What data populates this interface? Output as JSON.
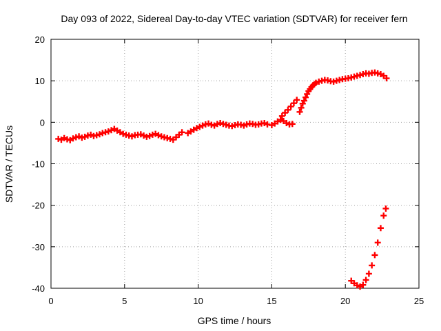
{
  "chart_data": {
    "type": "scatter",
    "title": "Day 093 of 2022, Sidereal Day-to-day VTEC variation (SDTVAR) for receiver fern",
    "xlabel": "GPS time / hours",
    "ylabel": "SDTVAR / TECUs",
    "xlim": [
      0,
      25
    ],
    "ylim": [
      -40,
      20
    ],
    "x_ticks": [
      0,
      5,
      10,
      15,
      20,
      25
    ],
    "y_ticks": [
      -40,
      -30,
      -20,
      -10,
      0,
      10,
      20
    ],
    "x_tick_labels": [
      "0",
      "5",
      "10",
      "15",
      "20",
      "25"
    ],
    "y_tick_labels": [
      "-40",
      "-30",
      "-20",
      "-10",
      "0",
      "10",
      "20"
    ],
    "grid": true,
    "marker": "plus",
    "marker_color": "#ff0000",
    "series": [
      {
        "name": "main-track",
        "points": [
          [
            0.5,
            -4.0
          ],
          [
            0.7,
            -4.2
          ],
          [
            0.9,
            -3.8
          ],
          [
            1.1,
            -4.1
          ],
          [
            1.3,
            -4.3
          ],
          [
            1.5,
            -3.9
          ],
          [
            1.7,
            -3.6
          ],
          [
            1.9,
            -3.4
          ],
          [
            2.1,
            -3.7
          ],
          [
            2.3,
            -3.5
          ],
          [
            2.5,
            -3.2
          ],
          [
            2.7,
            -3.0
          ],
          [
            2.9,
            -3.3
          ],
          [
            3.1,
            -3.1
          ],
          [
            3.3,
            -2.9
          ],
          [
            3.5,
            -2.6
          ],
          [
            3.7,
            -2.4
          ],
          [
            3.9,
            -2.2
          ],
          [
            4.1,
            -1.9
          ],
          [
            4.3,
            -1.6
          ],
          [
            4.5,
            -2.0
          ],
          [
            4.7,
            -2.4
          ],
          [
            4.9,
            -2.8
          ],
          [
            5.1,
            -3.0
          ],
          [
            5.3,
            -3.2
          ],
          [
            5.5,
            -3.4
          ],
          [
            5.7,
            -3.1
          ],
          [
            5.9,
            -3.0
          ],
          [
            6.1,
            -2.9
          ],
          [
            6.3,
            -3.2
          ],
          [
            6.5,
            -3.5
          ],
          [
            6.7,
            -3.3
          ],
          [
            6.9,
            -3.0
          ],
          [
            7.1,
            -2.8
          ],
          [
            7.3,
            -3.1
          ],
          [
            7.5,
            -3.4
          ],
          [
            7.7,
            -3.6
          ],
          [
            7.9,
            -3.8
          ],
          [
            8.1,
            -4.0
          ],
          [
            8.3,
            -4.2
          ],
          [
            8.5,
            -3.6
          ],
          [
            8.7,
            -3.0
          ],
          [
            8.9,
            -2.4
          ],
          [
            9.3,
            -2.6
          ],
          [
            9.5,
            -2.2
          ],
          [
            9.7,
            -1.8
          ],
          [
            9.9,
            -1.4
          ],
          [
            10.1,
            -1.1
          ],
          [
            10.3,
            -0.8
          ],
          [
            10.5,
            -0.5
          ],
          [
            10.7,
            -0.3
          ],
          [
            10.9,
            -0.6
          ],
          [
            11.1,
            -0.8
          ],
          [
            11.3,
            -0.4
          ],
          [
            11.5,
            -0.2
          ],
          [
            11.7,
            -0.4
          ],
          [
            11.9,
            -0.6
          ],
          [
            12.1,
            -0.8
          ],
          [
            12.3,
            -0.9
          ],
          [
            12.5,
            -0.7
          ],
          [
            12.7,
            -0.5
          ],
          [
            12.9,
            -0.6
          ],
          [
            13.1,
            -0.8
          ],
          [
            13.3,
            -0.5
          ],
          [
            13.5,
            -0.3
          ],
          [
            13.7,
            -0.4
          ],
          [
            13.9,
            -0.6
          ],
          [
            14.1,
            -0.5
          ],
          [
            14.3,
            -0.3
          ],
          [
            14.5,
            -0.2
          ],
          [
            14.7,
            -0.5
          ],
          [
            15.0,
            -0.7
          ],
          [
            15.2,
            -0.3
          ],
          [
            15.4,
            0.2
          ],
          [
            15.6,
            0.6
          ],
          [
            15.8,
            0.3
          ],
          [
            16.0,
            -0.2
          ],
          [
            16.2,
            -0.5
          ],
          [
            16.4,
            -0.4
          ],
          [
            15.7,
            1.5
          ],
          [
            15.9,
            2.3
          ],
          [
            16.1,
            3.0
          ],
          [
            16.3,
            3.8
          ],
          [
            16.5,
            4.6
          ],
          [
            16.7,
            5.4
          ],
          [
            16.9,
            2.5
          ],
          [
            17.0,
            3.5
          ],
          [
            17.1,
            4.5
          ],
          [
            17.2,
            5.2
          ],
          [
            17.3,
            6.0
          ],
          [
            17.4,
            6.8
          ],
          [
            17.5,
            7.5
          ],
          [
            17.6,
            8.0
          ],
          [
            17.7,
            8.5
          ],
          [
            17.8,
            8.9
          ],
          [
            17.9,
            9.2
          ],
          [
            18.0,
            9.5
          ],
          [
            18.2,
            9.8
          ],
          [
            18.4,
            10.0
          ],
          [
            18.6,
            10.2
          ],
          [
            18.8,
            10.1
          ],
          [
            19.0,
            9.9
          ],
          [
            19.2,
            9.8
          ],
          [
            19.4,
            10.0
          ],
          [
            19.6,
            10.2
          ],
          [
            19.8,
            10.4
          ],
          [
            20.0,
            10.5
          ],
          [
            20.2,
            10.6
          ],
          [
            20.4,
            10.8
          ],
          [
            20.6,
            11.0
          ],
          [
            20.8,
            11.2
          ],
          [
            21.0,
            11.4
          ],
          [
            21.2,
            11.6
          ],
          [
            21.4,
            11.8
          ],
          [
            21.6,
            11.7
          ],
          [
            21.8,
            11.9
          ],
          [
            22.0,
            12.0
          ],
          [
            22.2,
            11.8
          ],
          [
            22.4,
            11.6
          ],
          [
            22.6,
            11.2
          ],
          [
            22.8,
            10.6
          ]
        ]
      },
      {
        "name": "lower-arc",
        "points": [
          [
            20.4,
            -38.2
          ],
          [
            20.6,
            -38.8
          ],
          [
            20.8,
            -39.3
          ],
          [
            21.0,
            -39.6
          ],
          [
            21.2,
            -39.2
          ],
          [
            21.4,
            -38.0
          ],
          [
            21.6,
            -36.5
          ],
          [
            21.8,
            -34.5
          ],
          [
            22.0,
            -32.0
          ],
          [
            22.2,
            -29.0
          ],
          [
            22.4,
            -25.5
          ],
          [
            22.6,
            -22.5
          ],
          [
            22.75,
            -20.8
          ]
        ]
      }
    ]
  }
}
